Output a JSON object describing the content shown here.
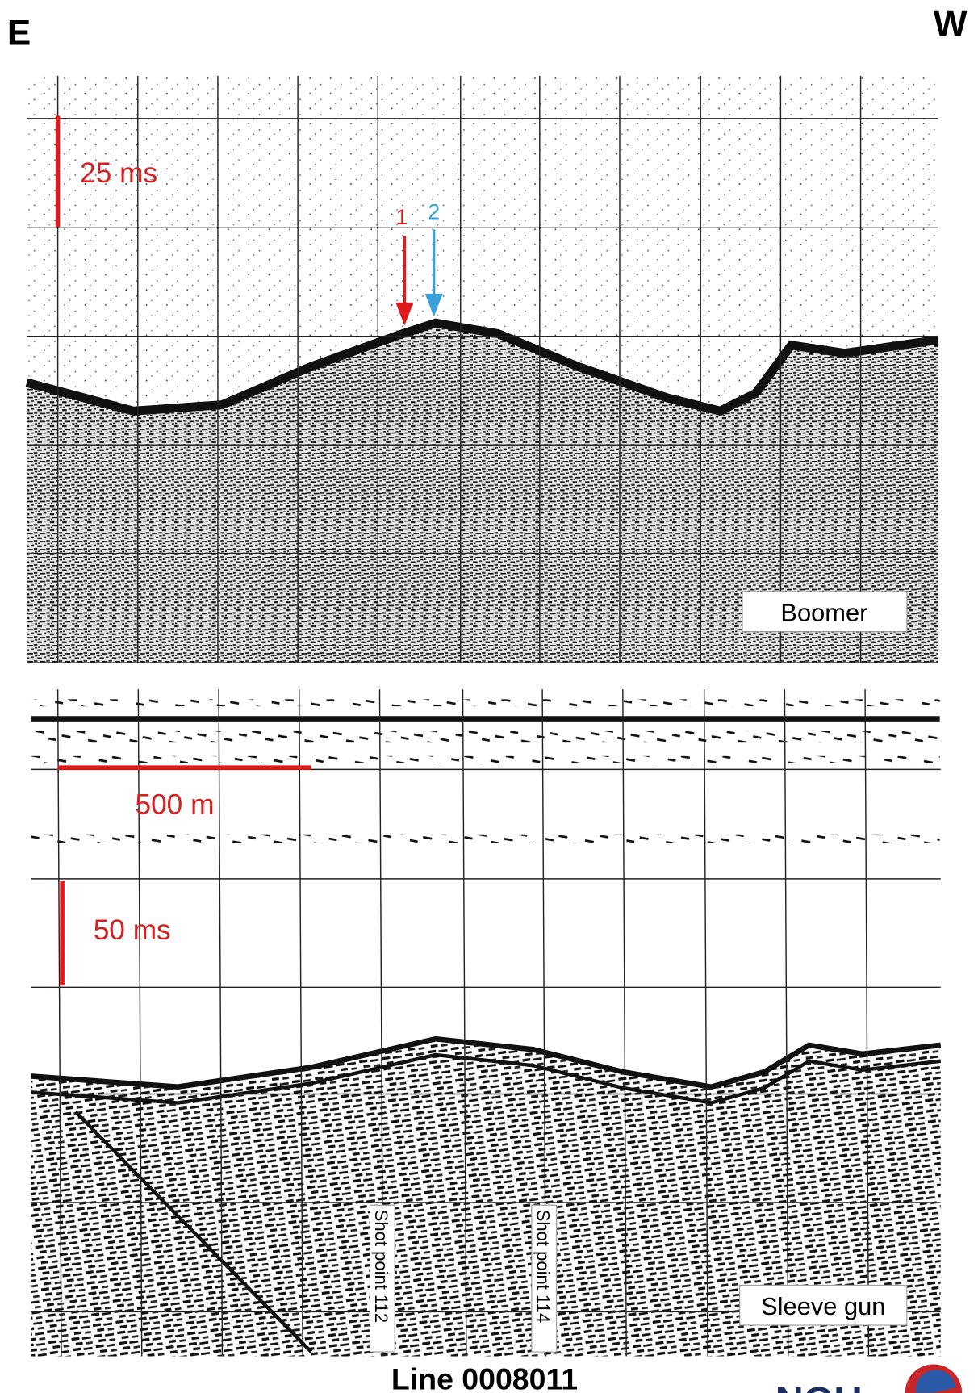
{
  "header": {
    "left_direction": "E",
    "right_direction": "W"
  },
  "boomer_panel": {
    "scale_time": "25 ms",
    "markers": [
      {
        "label": "1"
      },
      {
        "label": "2"
      }
    ],
    "label": "Boomer"
  },
  "sleeve_gun_panel": {
    "scale_distance": "500 m",
    "scale_time": "50 ms",
    "shot_points": [
      "Shot point 112",
      "Shot point 114"
    ],
    "label": "Sleeve gun"
  },
  "footer": {
    "line_name": "Line 0008011",
    "logo": "NGU"
  }
}
